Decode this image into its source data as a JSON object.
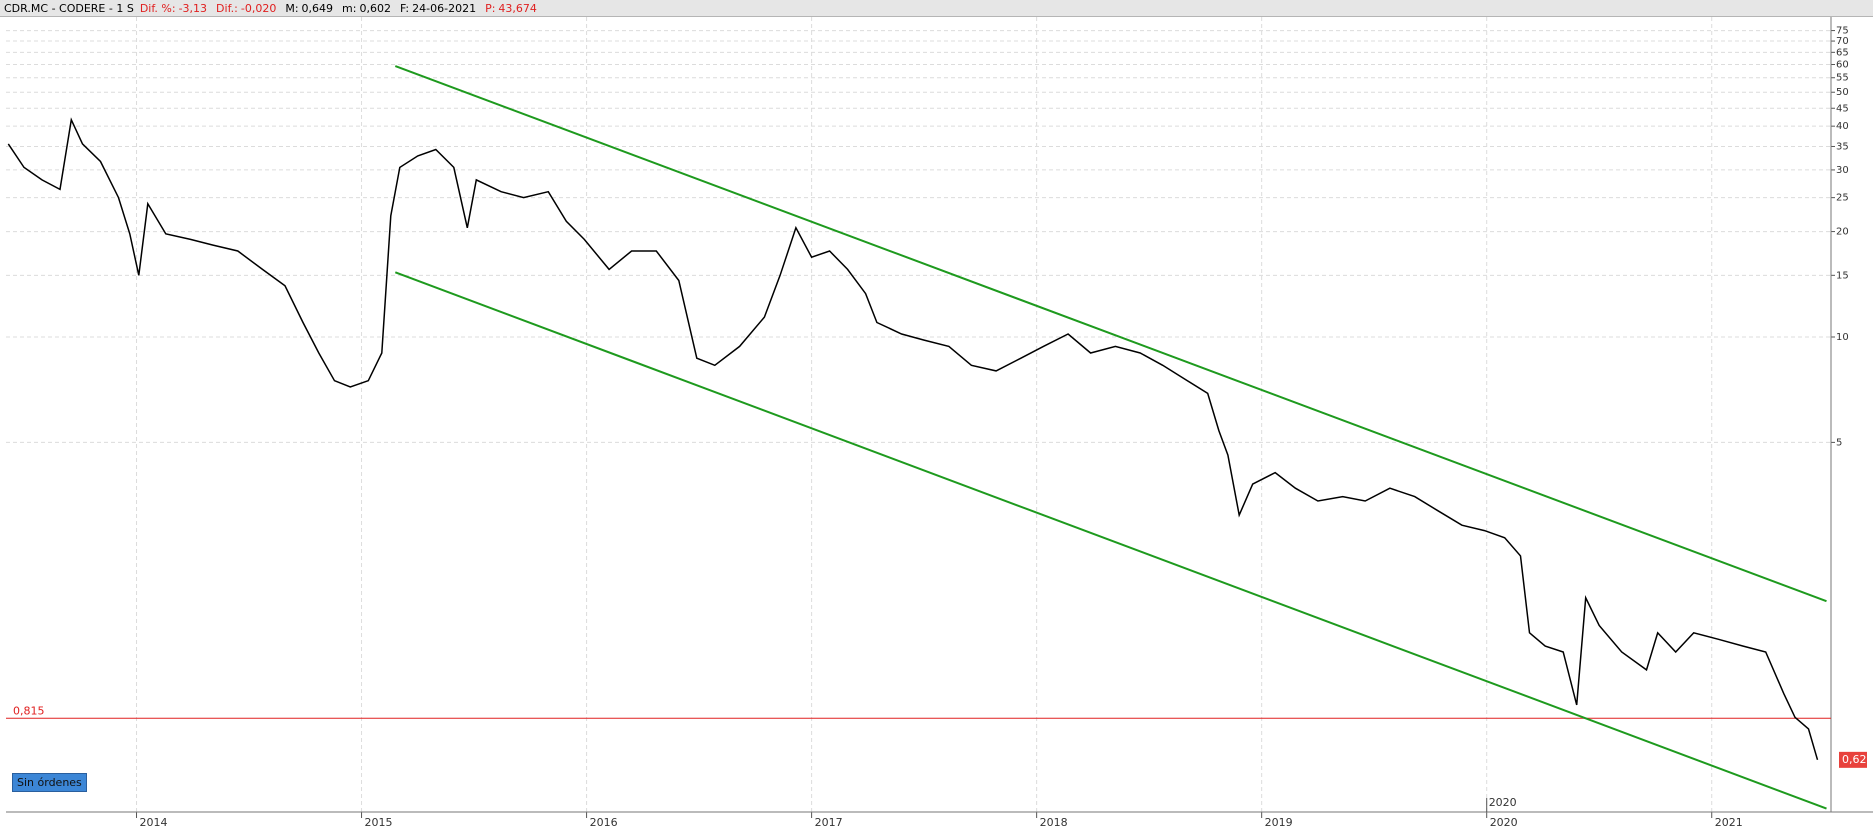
{
  "header": {
    "symbol": "CDR.MC - CODERE - 1 S",
    "fields": [
      {
        "label": "Dif. %:",
        "value": "-3,13",
        "color": "#e02020"
      },
      {
        "label": "Dif.:",
        "value": "-0,020",
        "color": "#e02020"
      },
      {
        "label": "M:",
        "value": "0,649",
        "color": "#000000"
      },
      {
        "label": "m:",
        "value": "0,602",
        "color": "#000000"
      },
      {
        "label": "F:",
        "value": "24-06-2021",
        "color": "#000000"
      },
      {
        "label": "P:",
        "value": "43,674",
        "color": "#e02020"
      }
    ]
  },
  "button": "Sin órdenes",
  "chart_data": {
    "type": "line",
    "color": "#000000",
    "log_y": true,
    "grid": true,
    "x": [
      2013.43,
      2013.5,
      2013.58,
      2013.66,
      2013.71,
      2013.76,
      2013.84,
      2013.92,
      2013.97,
      2014.01,
      2014.05,
      2014.13,
      2014.24,
      2014.34,
      2014.45,
      2014.56,
      2014.66,
      2014.74,
      2014.81,
      2014.88,
      2014.95,
      2015.03,
      2015.09,
      2015.13,
      2015.17,
      2015.25,
      2015.33,
      2015.41,
      2015.47,
      2015.51,
      2015.62,
      2015.72,
      2015.83,
      2015.91,
      2015.99,
      2016.1,
      2016.2,
      2016.31,
      2016.41,
      2016.49,
      2016.57,
      2016.68,
      2016.79,
      2016.86,
      2016.93,
      2017.0,
      2017.08,
      2017.16,
      2017.24,
      2017.29,
      2017.4,
      2017.5,
      2017.61,
      2017.71,
      2017.82,
      2017.93,
      2018.03,
      2018.14,
      2018.24,
      2018.35,
      2018.46,
      2018.56,
      2018.67,
      2018.76,
      2018.81,
      2018.85,
      2018.9,
      2018.96,
      2019.06,
      2019.15,
      2019.25,
      2019.36,
      2019.46,
      2019.57,
      2019.68,
      2019.78,
      2019.89,
      2019.99,
      2020.08,
      2020.15,
      2020.19,
      2020.26,
      2020.34,
      2020.4,
      2020.44,
      2020.5,
      2020.6,
      2020.71,
      2020.76,
      2020.84,
      2020.92,
      2021.03,
      2021.14,
      2021.24,
      2021.32,
      2021.37,
      2021.43,
      2021.47
    ],
    "values": [
      35.6,
      30.5,
      28.1,
      26.4,
      41.7,
      35.6,
      31.7,
      25,
      19.7,
      15,
      24,
      19.7,
      19,
      18.3,
      17.6,
      15.6,
      14,
      11,
      9,
      7.5,
      7.2,
      7.5,
      9,
      22.2,
      30.5,
      32.9,
      34.3,
      30.5,
      20.5,
      28.1,
      26,
      25,
      26,
      21.4,
      19,
      15.6,
      17.6,
      17.6,
      14.5,
      8.7,
      8.3,
      9.4,
      11.4,
      15,
      20.5,
      16.9,
      17.6,
      15.6,
      13.3,
      11,
      10.2,
      9.8,
      9.4,
      8.3,
      8,
      8.7,
      9.4,
      10.2,
      9,
      9.4,
      9,
      8.3,
      7.5,
      6.9,
      5.4,
      4.6,
      3.1,
      3.8,
      4.1,
      3.7,
      3.4,
      3.5,
      3.4,
      3.7,
      3.5,
      3.2,
      2.9,
      2.8,
      2.67,
      2.37,
      1.43,
      1.31,
      1.26,
      0.89,
      1.8,
      1.5,
      1.26,
      1.12,
      1.43,
      1.26,
      1.43,
      1.37,
      1.31,
      1.26,
      0.96,
      0.82,
      0.76,
      0.62
    ],
    "xlim": [
      2013.42,
      2021.53
    ],
    "xticks": [
      2014,
      2015,
      2016,
      2017,
      2018,
      2019,
      2020,
      2021
    ],
    "ylim": [
      0.44,
      82
    ],
    "yticks": [
      5,
      10,
      15,
      20,
      25,
      30,
      35,
      40,
      45,
      50,
      55,
      60,
      65,
      70,
      75
    ],
    "trendlines": [
      {
        "color": "#1e9a1e",
        "x": [
          2015.15,
          2021.51
        ],
        "y": [
          59.4,
          1.76
        ]
      },
      {
        "color": "#1e9a1e",
        "x": [
          2015.15,
          2021.51
        ],
        "y": [
          15.3,
          0.45
        ]
      }
    ],
    "hline": {
      "value": 0.815,
      "label": "0,815",
      "color": "#e02020"
    },
    "last_price": {
      "value": 0.62,
      "label": "0,62"
    },
    "period_marker": 2020
  }
}
